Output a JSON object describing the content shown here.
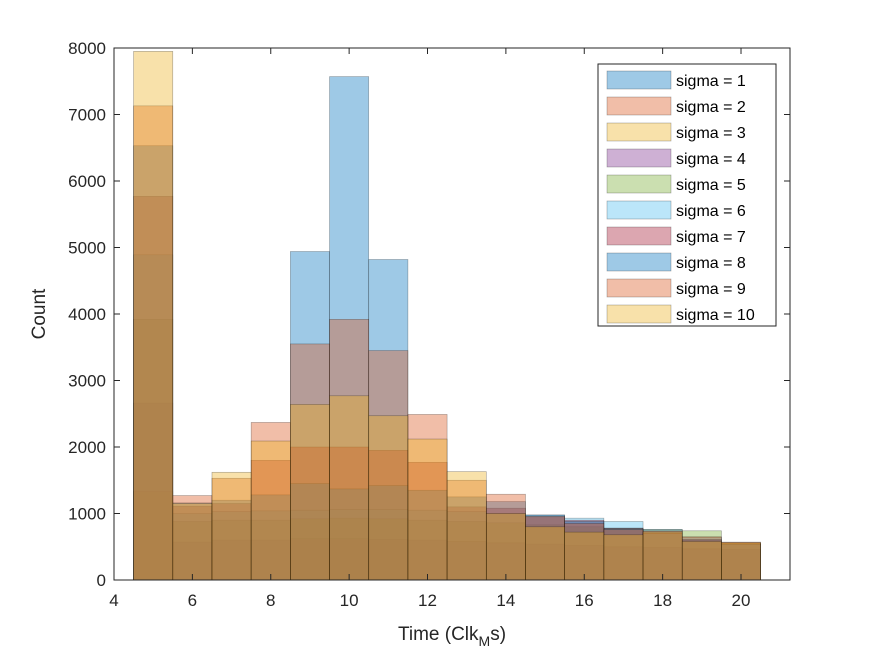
{
  "chart_data": {
    "type": "bar",
    "subtype": "overlaid-histogram",
    "xlabel": "Time (Clk",
    "xlabel_subscript": "M",
    "xlabel_suffix": "s)",
    "ylabel": "Count",
    "xlim": [
      4,
      21.25
    ],
    "ylim": [
      0,
      8000
    ],
    "xticks": [
      4,
      6,
      8,
      10,
      12,
      14,
      16,
      18,
      20
    ],
    "yticks": [
      0,
      1000,
      2000,
      3000,
      4000,
      5000,
      6000,
      7000,
      8000
    ],
    "bin_edges": [
      4.5,
      5.5,
      6.5,
      7.5,
      8.5,
      9.5,
      10.5,
      11.5,
      12.5,
      13.5,
      14.5,
      15.5,
      16.5,
      17.5,
      18.5,
      19.5,
      20.5
    ],
    "legend_position": "top-right",
    "face_alpha": 0.38,
    "series": [
      {
        "name": "sigma = 1",
        "color": "#0072BD",
        "values": [
          0,
          0,
          0,
          0,
          4940,
          7570,
          4820,
          0,
          0,
          0,
          0,
          0,
          0,
          0,
          0,
          0
        ]
      },
      {
        "name": "sigma = 2",
        "color": "#D95319",
        "values": [
          0,
          0,
          0,
          0,
          0,
          0,
          0,
          0,
          0,
          0,
          0,
          0,
          0,
          0,
          0,
          0
        ]
      },
      {
        "name": "sigma = 3",
        "color": "#EDB120",
        "values": [
          1330,
          0,
          0,
          0,
          0,
          0,
          0,
          0,
          0,
          0,
          0,
          0,
          0,
          0,
          0,
          0
        ]
      },
      {
        "name": "sigma = 4",
        "color": "#7E2F8E",
        "values": [
          2660,
          570,
          600,
          600,
          620,
          620,
          610,
          600,
          580,
          560,
          540,
          520,
          500,
          490,
          470,
          460
        ]
      },
      {
        "name": "sigma = 5",
        "color": "#77AC30",
        "values": [
          3920,
          880,
          900,
          900,
          920,
          930,
          920,
          900,
          880,
          860,
          830,
          800,
          780,
          760,
          740,
          560
        ]
      },
      {
        "name": "sigma = 6",
        "color": "#4DBEEE",
        "values": [
          4890,
          1000,
          1030,
          1040,
          1050,
          1060,
          1060,
          1050,
          1030,
          1000,
          970,
          930,
          880,
          760,
          640,
          540
        ]
      },
      {
        "name": "sigma = 7",
        "color": "#A2142F",
        "values": [
          5770,
          1110,
          1150,
          1800,
          2000,
          2000,
          1950,
          1770,
          1100,
          1080,
          950,
          900,
          780,
          740,
          600,
          550
        ]
      },
      {
        "name": "sigma = 8",
        "color": "#0072BD",
        "values": [
          6530,
          1160,
          1200,
          1280,
          1450,
          1370,
          1420,
          1350,
          1250,
          1180,
          980,
          880,
          770,
          700,
          610,
          540
        ]
      },
      {
        "name": "sigma = 9",
        "color": "#D95319",
        "values": [
          7130,
          1270,
          1530,
          2370,
          3550,
          3920,
          3450,
          2490,
          1500,
          1290,
          960,
          850,
          760,
          710,
          650,
          570
        ]
      },
      {
        "name": "sigma = 10",
        "color": "#EDB120",
        "values": [
          7950,
          1150,
          1620,
          2090,
          2640,
          2770,
          2470,
          2120,
          1630,
          1000,
          800,
          720,
          680,
          730,
          580,
          560
        ]
      }
    ]
  }
}
